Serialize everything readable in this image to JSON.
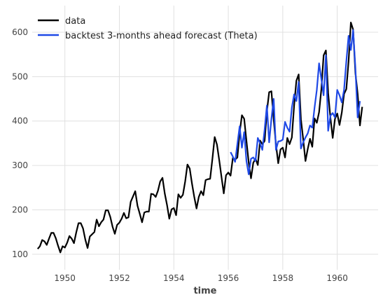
{
  "chart_data": {
    "type": "line",
    "title": "",
    "xlabel": "time",
    "ylabel": "",
    "xlim": [
      1948.8,
      1961.5
    ],
    "ylim": [
      65,
      660
    ],
    "x_ticks": [
      1950,
      1952,
      1954,
      1956,
      1958,
      1960
    ],
    "x_tick_labels": [
      "1950",
      "1952",
      "1954",
      "1956",
      "1958",
      "1960"
    ],
    "y_ticks": [
      100,
      200,
      300,
      400,
      500,
      600
    ],
    "y_tick_labels": [
      "100",
      "200",
      "300",
      "400",
      "500",
      "600"
    ],
    "grid": true,
    "legend_position": "top-left",
    "series": [
      {
        "name": "data",
        "color": "#000000",
        "start": 1949.0,
        "step": 0.08333333,
        "values": [
          112,
          118,
          132,
          129,
          121,
          135,
          148,
          148,
          136,
          119,
          104,
          118,
          115,
          126,
          141,
          135,
          125,
          149,
          170,
          170,
          158,
          133,
          114,
          140,
          145,
          150,
          178,
          163,
          172,
          178,
          199,
          199,
          184,
          162,
          146,
          166,
          171,
          180,
          193,
          181,
          183,
          218,
          230,
          242,
          209,
          191,
          172,
          194,
          196,
          196,
          236,
          235,
          229,
          243,
          264,
          272,
          237,
          211,
          180,
          201,
          204,
          188,
          235,
          227,
          234,
          264,
          302,
          293,
          259,
          229,
          203,
          229,
          242,
          233,
          267,
          269,
          270,
          315,
          364,
          347,
          312,
          274,
          237,
          278,
          284,
          277,
          317,
          313,
          318,
          374,
          413,
          405,
          355,
          306,
          271,
          306,
          315,
          301,
          356,
          348,
          355,
          422,
          465,
          467,
          404,
          347,
          305,
          336,
          340,
          318,
          362,
          348,
          363,
          435,
          491,
          505,
          404,
          359,
          310,
          337,
          360,
          342,
          406,
          396,
          420,
          472,
          548,
          559,
          463,
          407,
          362,
          405,
          417,
          391,
          419,
          461,
          472,
          535,
          622,
          606,
          508,
          461,
          390,
          432
        ]
      },
      {
        "name": "backtest 3-months ahead forecast (Theta)",
        "color": "#1f49e6",
        "start": 1956.083,
        "step": 0.08333333,
        "values": [
          330,
          320,
          308,
          348,
          388,
          340,
          375,
          310,
          280,
          315,
          318,
          310,
          362,
          350,
          335,
          380,
          435,
          352,
          405,
          450,
          335,
          354,
          355,
          358,
          398,
          385,
          376,
          430,
          460,
          445,
          488,
          338,
          352,
          363,
          372,
          390,
          385,
          430,
          470,
          530,
          495,
          458,
          548,
          378,
          412,
          418,
          408,
          470,
          458,
          442,
          470,
          534,
          592,
          560,
          605,
          520,
          408,
          445
        ]
      }
    ]
  }
}
